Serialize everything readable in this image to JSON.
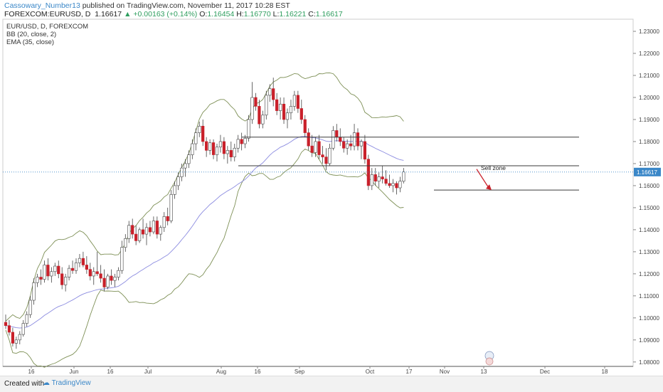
{
  "header": {
    "author": "Cassowary_Number13",
    "published": " published on TradingView.com, November 11, 2017 10:28 EST",
    "symbol": "FOREXCOM:EURUSD, D",
    "last": "1.16617",
    "change": "+0.00163 (+0.14%)",
    "o_label": "O:",
    "o": "1.16454",
    "h_label": "H:",
    "h": "1.16770",
    "l_label": "L:",
    "l": "1.16221",
    "c_label": "C:",
    "c": "1.16617"
  },
  "indicators": [
    {
      "label": "EUR/USD, D, FOREXCOM"
    },
    {
      "label": "BB (20, close, 2)"
    },
    {
      "label": "EMA (35, close)"
    }
  ],
  "footer": {
    "created_with": "Created with",
    "brand": "TradingView"
  },
  "colors": {
    "up_candle": "#ffffff",
    "down_candle": "#c9202a",
    "wick": "#444444",
    "bollinger": "#7d8f55",
    "ema": "#8c8ce0",
    "level_line": "#3a3a3a",
    "price_badge": "#3a87c8",
    "arrow": "#c9202a"
  },
  "chart_data": {
    "type": "candlestick",
    "price_axis": {
      "ticks": [
        "1.23000",
        "1.22000",
        "1.21000",
        "1.20000",
        "1.19000",
        "1.18000",
        "1.17000",
        "1.16000",
        "1.15000",
        "1.14000",
        "1.13000",
        "1.12000",
        "1.11000",
        "1.10000",
        "1.09000",
        "1.08000"
      ],
      "range": [
        1.078,
        1.2355
      ],
      "current_price_label": "1.16617"
    },
    "time_axis": {
      "labels": [
        "16",
        "Jun",
        "16",
        "Jul",
        "Aug",
        "16",
        "Sep",
        "Oct",
        "17",
        "Nov",
        "13",
        "Dec",
        "18"
      ]
    },
    "candles": [
      [
        1.098,
        1.1015,
        1.095,
        1.0965
      ],
      [
        1.0965,
        1.099,
        1.092,
        1.0935
      ],
      [
        1.0935,
        1.0955,
        1.087,
        1.0885
      ],
      [
        1.0885,
        1.0915,
        1.086,
        1.09
      ],
      [
        1.09,
        1.094,
        1.088,
        1.0925
      ],
      [
        1.0925,
        1.099,
        1.0915,
        1.0975
      ],
      [
        1.0975,
        1.103,
        1.096,
        1.1015
      ],
      [
        1.1015,
        1.11,
        1.1,
        1.108
      ],
      [
        1.108,
        1.118,
        1.106,
        1.116
      ],
      [
        1.116,
        1.12,
        1.114,
        1.1185
      ],
      [
        1.1185,
        1.122,
        1.115,
        1.1175
      ],
      [
        1.1175,
        1.126,
        1.116,
        1.124
      ],
      [
        1.124,
        1.127,
        1.117,
        1.119
      ],
      [
        1.119,
        1.123,
        1.116,
        1.121
      ],
      [
        1.121,
        1.125,
        1.119,
        1.1235
      ],
      [
        1.1235,
        1.126,
        1.118,
        1.12
      ],
      [
        1.12,
        1.123,
        1.113,
        1.115
      ],
      [
        1.115,
        1.12,
        1.112,
        1.1185
      ],
      [
        1.1185,
        1.124,
        1.117,
        1.1225
      ],
      [
        1.1225,
        1.126,
        1.12,
        1.1215
      ],
      [
        1.1215,
        1.127,
        1.12,
        1.125
      ],
      [
        1.125,
        1.129,
        1.123,
        1.127
      ],
      [
        1.127,
        1.13,
        1.123,
        1.124
      ],
      [
        1.124,
        1.128,
        1.12,
        1.122
      ],
      [
        1.122,
        1.125,
        1.117,
        1.119
      ],
      [
        1.119,
        1.123,
        1.115,
        1.121
      ],
      [
        1.121,
        1.13,
        1.119,
        1.12
      ],
      [
        1.12,
        1.124,
        1.116,
        1.118
      ],
      [
        1.118,
        1.122,
        1.112,
        1.114
      ],
      [
        1.114,
        1.12,
        1.113,
        1.119
      ],
      [
        1.119,
        1.122,
        1.115,
        1.117
      ],
      [
        1.117,
        1.12,
        1.114,
        1.1185
      ],
      [
        1.1185,
        1.123,
        1.117,
        1.1215
      ],
      [
        1.1215,
        1.135,
        1.12,
        1.132
      ],
      [
        1.132,
        1.138,
        1.13,
        1.136
      ],
      [
        1.136,
        1.144,
        1.134,
        1.142
      ],
      [
        1.142,
        1.145,
        1.136,
        1.138
      ],
      [
        1.138,
        1.142,
        1.133,
        1.135
      ],
      [
        1.135,
        1.141,
        1.134,
        1.14
      ],
      [
        1.14,
        1.145,
        1.136,
        1.138
      ],
      [
        1.138,
        1.143,
        1.133,
        1.141
      ],
      [
        1.141,
        1.144,
        1.137,
        1.139
      ],
      [
        1.139,
        1.146,
        1.138,
        1.144
      ],
      [
        1.144,
        1.146,
        1.136,
        1.138
      ],
      [
        1.138,
        1.142,
        1.135,
        1.141
      ],
      [
        1.141,
        1.148,
        1.139,
        1.146
      ],
      [
        1.146,
        1.15,
        1.142,
        1.144
      ],
      [
        1.144,
        1.158,
        1.143,
        1.156
      ],
      [
        1.156,
        1.162,
        1.154,
        1.16
      ],
      [
        1.16,
        1.166,
        1.158,
        1.164
      ],
      [
        1.164,
        1.17,
        1.162,
        1.168
      ],
      [
        1.168,
        1.172,
        1.164,
        1.17
      ],
      [
        1.17,
        1.176,
        1.168,
        1.174
      ],
      [
        1.174,
        1.181,
        1.172,
        1.179
      ],
      [
        1.179,
        1.186,
        1.176,
        1.184
      ],
      [
        1.184,
        1.189,
        1.182,
        1.187
      ],
      [
        1.187,
        1.19,
        1.178,
        1.18
      ],
      [
        1.18,
        1.182,
        1.173,
        1.176
      ],
      [
        1.176,
        1.181,
        1.174,
        1.1795
      ],
      [
        1.1795,
        1.181,
        1.172,
        1.174
      ],
      [
        1.174,
        1.179,
        1.171,
        1.1775
      ],
      [
        1.1775,
        1.183,
        1.175,
        1.18
      ],
      [
        1.18,
        1.182,
        1.172,
        1.1745
      ],
      [
        1.1745,
        1.178,
        1.17,
        1.176
      ],
      [
        1.176,
        1.18,
        1.171,
        1.173
      ],
      [
        1.173,
        1.179,
        1.171,
        1.177
      ],
      [
        1.177,
        1.183,
        1.175,
        1.181
      ],
      [
        1.181,
        1.184,
        1.176,
        1.179
      ],
      [
        1.179,
        1.183,
        1.177,
        1.1815
      ],
      [
        1.1815,
        1.192,
        1.18,
        1.19
      ],
      [
        1.19,
        1.207,
        1.188,
        1.2
      ],
      [
        1.2,
        1.202,
        1.194,
        1.196
      ],
      [
        1.196,
        1.199,
        1.186,
        1.188
      ],
      [
        1.188,
        1.194,
        1.186,
        1.192
      ],
      [
        1.192,
        1.203,
        1.19,
        1.201
      ],
      [
        1.201,
        1.206,
        1.198,
        1.204
      ],
      [
        1.204,
        1.209,
        1.196,
        1.199
      ],
      [
        1.199,
        1.202,
        1.192,
        1.194
      ],
      [
        1.194,
        1.2,
        1.19,
        1.197
      ],
      [
        1.197,
        1.2,
        1.188,
        1.19
      ],
      [
        1.19,
        1.195,
        1.186,
        1.193
      ],
      [
        1.193,
        1.199,
        1.19,
        1.196
      ],
      [
        1.196,
        1.203,
        1.194,
        1.201
      ],
      [
        1.201,
        1.203,
        1.193,
        1.195
      ],
      [
        1.195,
        1.199,
        1.188,
        1.19
      ],
      [
        1.19,
        1.192,
        1.182,
        1.184
      ],
      [
        1.184,
        1.186,
        1.176,
        1.178
      ],
      [
        1.178,
        1.183,
        1.173,
        1.175
      ],
      [
        1.175,
        1.182,
        1.173,
        1.18
      ],
      [
        1.18,
        1.183,
        1.172,
        1.174
      ],
      [
        1.174,
        1.178,
        1.17,
        1.173
      ],
      [
        1.173,
        1.177,
        1.167,
        1.17
      ],
      [
        1.17,
        1.179,
        1.169,
        1.177
      ],
      [
        1.177,
        1.187,
        1.176,
        1.185
      ],
      [
        1.185,
        1.188,
        1.18,
        1.182
      ],
      [
        1.182,
        1.186,
        1.178,
        1.18
      ],
      [
        1.18,
        1.182,
        1.175,
        1.177
      ],
      [
        1.177,
        1.181,
        1.174,
        1.179
      ],
      [
        1.179,
        1.183,
        1.176,
        1.178
      ],
      [
        1.178,
        1.188,
        1.176,
        1.184
      ],
      [
        1.184,
        1.186,
        1.176,
        1.178
      ],
      [
        1.178,
        1.181,
        1.172,
        1.18
      ],
      [
        1.18,
        1.183,
        1.17,
        1.172
      ],
      [
        1.172,
        1.174,
        1.158,
        1.16
      ],
      [
        1.16,
        1.168,
        1.158,
        1.165
      ],
      [
        1.165,
        1.168,
        1.16,
        1.162
      ],
      [
        1.162,
        1.166,
        1.159,
        1.164
      ],
      [
        1.164,
        1.169,
        1.161,
        1.163
      ],
      [
        1.163,
        1.167,
        1.16,
        1.161
      ],
      [
        1.161,
        1.165,
        1.159,
        1.16
      ],
      [
        1.16,
        1.163,
        1.157,
        1.161
      ],
      [
        1.161,
        1.162,
        1.156,
        1.159
      ],
      [
        1.159,
        1.164,
        1.157,
        1.162
      ],
      [
        1.162,
        1.168,
        1.161,
        1.1662
      ]
    ],
    "horizontal_levels": [
      1.182,
      1.169,
      1.158
    ],
    "annotations": [
      {
        "text": "Sell zone",
        "price": 1.169
      }
    ]
  }
}
